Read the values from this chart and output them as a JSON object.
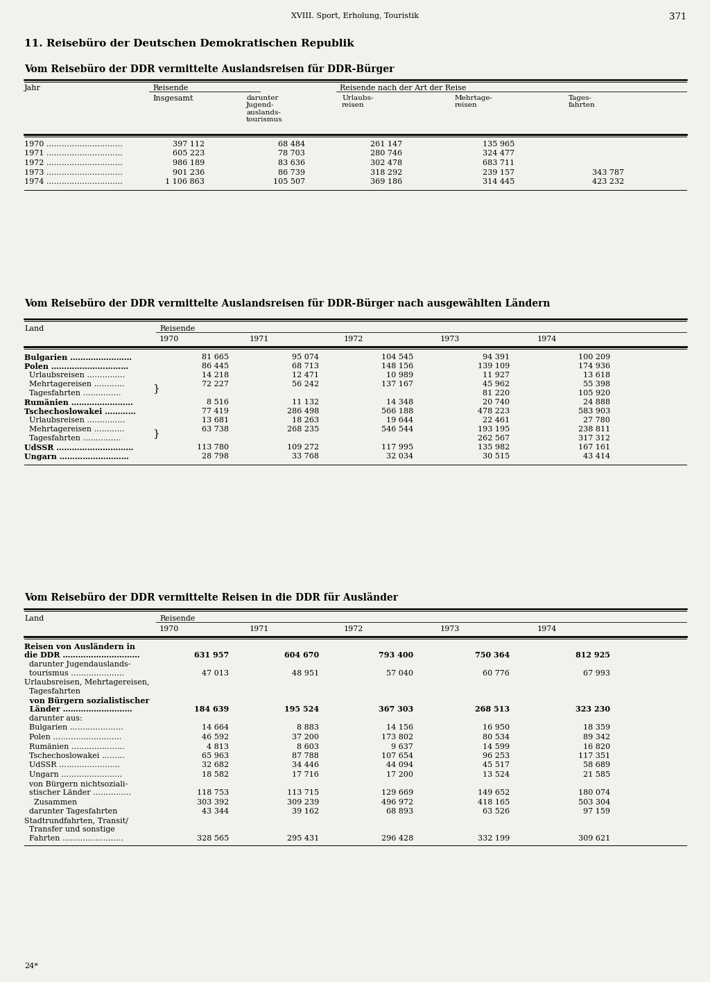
{
  "page_header": "XVIII. Sport, Erholung, Touristik",
  "page_number": "371",
  "section_title": "11. Reisebüro der Deutschen Demokratischen Republik",
  "bg_color": "#f2f1ec",
  "table1_title": "Vom Reisebüro der DDR vermittelte Auslandsreisen für DDR-Bürger",
  "table2_title": "Vom Reisebüro der DDR vermittelte Auslandsreisen für DDR-Bürger nach ausgewählten Ländern",
  "table3_title": "Vom Reisebüro der DDR vermittelte Reisen in die DDR für Ausländer",
  "t1_rows": [
    [
      "1970 …………………………",
      "397 112",
      "68 484",
      "261 147",
      "135 965",
      ""
    ],
    [
      "1971 …………………………",
      "605 223",
      "78 703",
      "280 746",
      "324 477",
      ""
    ],
    [
      "1972 …………………………",
      "986 189",
      "83 636",
      "302 478",
      "683 711",
      ""
    ],
    [
      "1973 …………………………",
      "901 236",
      "86 739",
      "318 292",
      "239 157",
      "343 787"
    ],
    [
      "1974 …………………………",
      "1 106 863",
      "105 507",
      "369 186",
      "314 445",
      "423 232"
    ]
  ],
  "t2_rows": [
    [
      "Bulgarien ……………………",
      "81 665",
      "95 074",
      "104 545",
      "94 391",
      "100 209"
    ],
    [
      "Polen …………………………",
      "86 445",
      "68 713",
      "148 156",
      "139 109",
      "174 936"
    ],
    [
      "  Urlaubsreisen ……………",
      "14 218",
      "12 471",
      "10 989",
      "11 927",
      "13 618"
    ],
    [
      "  Mehrtagereisen …………",
      "72 227",
      "56 242",
      "137 167",
      "45 962",
      "55 398"
    ],
    [
      "  Tagesfahrten ……………",
      "",
      "",
      "",
      "81 220",
      "105 920"
    ],
    [
      "Rumänien ……………………",
      "8 516",
      "11 132",
      "14 348",
      "20 740",
      "24 888"
    ],
    [
      "Tschechoslowakei …………",
      "77 419",
      "286 498",
      "566 188",
      "478 223",
      "583 903"
    ],
    [
      "  Urlaubsreisen ……………",
      "13 681",
      "18 263",
      "19 644",
      "22 461",
      "27 780"
    ],
    [
      "  Mehrtagereisen …………",
      "63 738",
      "268 235",
      "546 544",
      "193 195",
      "238 811"
    ],
    [
      "  Tagesfahrten ……………",
      "",
      "",
      "",
      "262 567",
      "317 312"
    ],
    [
      "UdSSR …………………………",
      "113 780",
      "109 272",
      "117 995",
      "135 982",
      "167 161"
    ],
    [
      "Ungarn ………………………",
      "28 798",
      "33 768",
      "32 034",
      "30 515",
      "43 414"
    ]
  ],
  "t2_row_bold": [
    0,
    1,
    5,
    6,
    10,
    11
  ],
  "t2_brace_rows": [
    3,
    4,
    8,
    9
  ],
  "t3_rows": [
    [
      "Reisen von Ausländern in",
      "631 957",
      "604 670",
      "793 400",
      "750 364",
      "812 925",
      "bold",
      1
    ],
    [
      "die DDR ……………………",
      "",
      "",
      "",
      "",
      "",
      "bold",
      2
    ],
    [
      "  darunter Jugendauslands-",
      "47 013",
      "48 951",
      "57 040",
      "60 776",
      "67 993",
      "normal",
      1
    ],
    [
      "  tourismus …………………",
      "",
      "",
      "",
      "",
      "",
      "normal",
      2
    ],
    [
      "Urlaubsreisen, Mehrtagereisen,",
      "",
      "",
      "",
      "",
      "",
      "normal",
      1
    ],
    [
      "  Tagesfahrten",
      "",
      "",
      "",
      "",
      "",
      "normal",
      2
    ],
    [
      "  von Bürgern sozialistischer",
      "184 639",
      "195 524",
      "367 303",
      "268 513",
      "323 230",
      "bold",
      1
    ],
    [
      "  Länder ……………………",
      "",
      "",
      "",
      "",
      "",
      "bold",
      2
    ],
    [
      "  darunter aus:",
      "",
      "",
      "",
      "",
      "",
      "normal",
      1
    ],
    [
      "  Bulgarien ………………",
      "14 664",
      "8 883",
      "14 156",
      "16 950",
      "18 359",
      "normal",
      1
    ],
    [
      "  Polen ……………………",
      "46 592",
      "37 200",
      "173 802",
      "80 534",
      "89 342",
      "normal",
      1
    ],
    [
      "  Rumänien ………………",
      "4 813",
      "8 603",
      "9 637",
      "14 599",
      "16 820",
      "normal",
      1
    ],
    [
      "  Tschechoslowakei ……",
      "65 963",
      "87 788",
      "107 654",
      "96 253",
      "117 351",
      "normal",
      1
    ],
    [
      "  UdSSR ……………………",
      "32 682",
      "34 446",
      "44 094",
      "45 517",
      "58 689",
      "normal",
      1
    ],
    [
      "  Ungarn …………………",
      "18 582",
      "17 716",
      "17 200",
      "13 524",
      "21 585",
      "normal",
      1
    ],
    [
      "  von Bürgern nichtsoziali-",
      "118 753",
      "113 715",
      "129 669",
      "149 652",
      "180 074",
      "normal",
      1
    ],
    [
      "  stischer Länder …………",
      "",
      "",
      "",
      "",
      "",
      "normal",
      2
    ],
    [
      "    Zusammen",
      "303 392",
      "309 239",
      "496 972",
      "418 165",
      "503 304",
      "normal",
      1
    ],
    [
      "  darunter Tagesfahrten",
      "43 344",
      "39 162",
      "68 893",
      "63 526",
      "97 159",
      "normal",
      1
    ],
    [
      "Stadtrundfahrten, Transit/",
      "328 565",
      "295 431",
      "296 428",
      "332 199",
      "309 621",
      "normal",
      1
    ],
    [
      "  Transfer und sonstige",
      "",
      "",
      "",
      "",
      "",
      "normal",
      2
    ],
    [
      "  Fahrten ……………………",
      "",
      "",
      "",
      "",
      "",
      "normal",
      3
    ]
  ],
  "footer": "24*"
}
